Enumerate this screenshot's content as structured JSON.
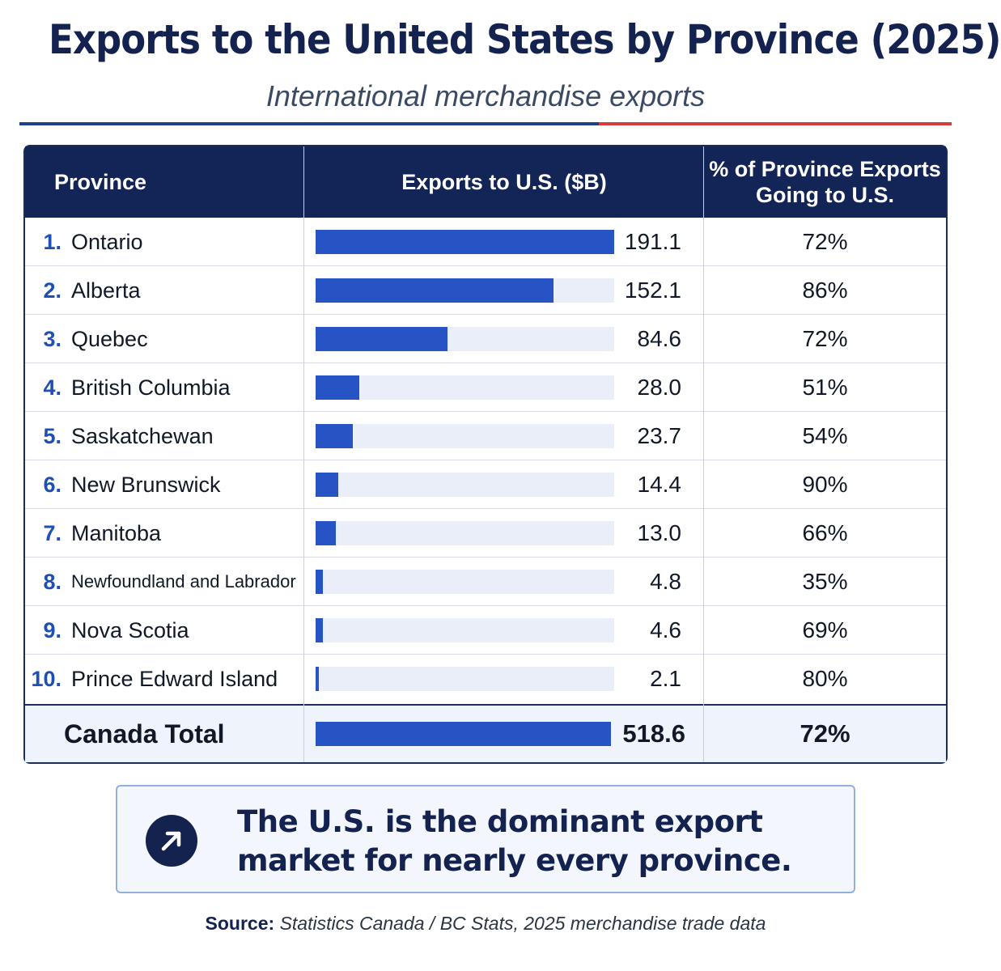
{
  "title": "Exports to the United States by Province (2025)",
  "subtitle": "International merchandise exports",
  "colors": {
    "navy": "#13224f",
    "bar": "#2654c4",
    "bar_track": "#e9eef8",
    "rule_blue": "#1e3f8c",
    "rule_red": "#d93a3a"
  },
  "chart_data": {
    "type": "table",
    "columns": [
      "Province",
      "Exports to U.S. ($B)",
      "% of Province Exports Going to U.S."
    ],
    "rows": [
      {
        "rank": "1.",
        "province": "Ontario",
        "exports": "191.1",
        "exports_value": 191.1,
        "pct": "72%"
      },
      {
        "rank": "2.",
        "province": "Alberta",
        "exports": "152.1",
        "exports_value": 152.1,
        "pct": "86%"
      },
      {
        "rank": "3.",
        "province": "Quebec",
        "exports": "84.6",
        "exports_value": 84.6,
        "pct": "72%"
      },
      {
        "rank": "4.",
        "province": "British Columbia",
        "exports": "28.0",
        "exports_value": 28.0,
        "pct": "51%"
      },
      {
        "rank": "5.",
        "province": "Saskatchewan",
        "exports": "23.7",
        "exports_value": 23.7,
        "pct": "54%"
      },
      {
        "rank": "6.",
        "province": "New Brunswick",
        "exports": "14.4",
        "exports_value": 14.4,
        "pct": "90%"
      },
      {
        "rank": "7.",
        "province": "Manitoba",
        "exports": "13.0",
        "exports_value": 13.0,
        "pct": "66%"
      },
      {
        "rank": "8.",
        "province": "Newfoundland and Labrador",
        "exports": "4.8",
        "exports_value": 4.8,
        "pct": "35%"
      },
      {
        "rank": "9.",
        "province": "Nova Scotia",
        "exports": "4.6",
        "exports_value": 4.6,
        "pct": "69%"
      },
      {
        "rank": "10.",
        "province": "Prince Edward Island",
        "exports": "2.1",
        "exports_value": 2.1,
        "pct": "80%"
      }
    ],
    "total": {
      "label": "Canada Total",
      "exports": "518.6",
      "pct": "72%"
    }
  },
  "callout": {
    "icon": "arrow-up-right-icon",
    "text": "The U.S. is the dominant export market for nearly every province."
  },
  "source": {
    "label": "Source:",
    "text": "Statistics Canada / BC Stats, 2025 merchandise trade data"
  }
}
